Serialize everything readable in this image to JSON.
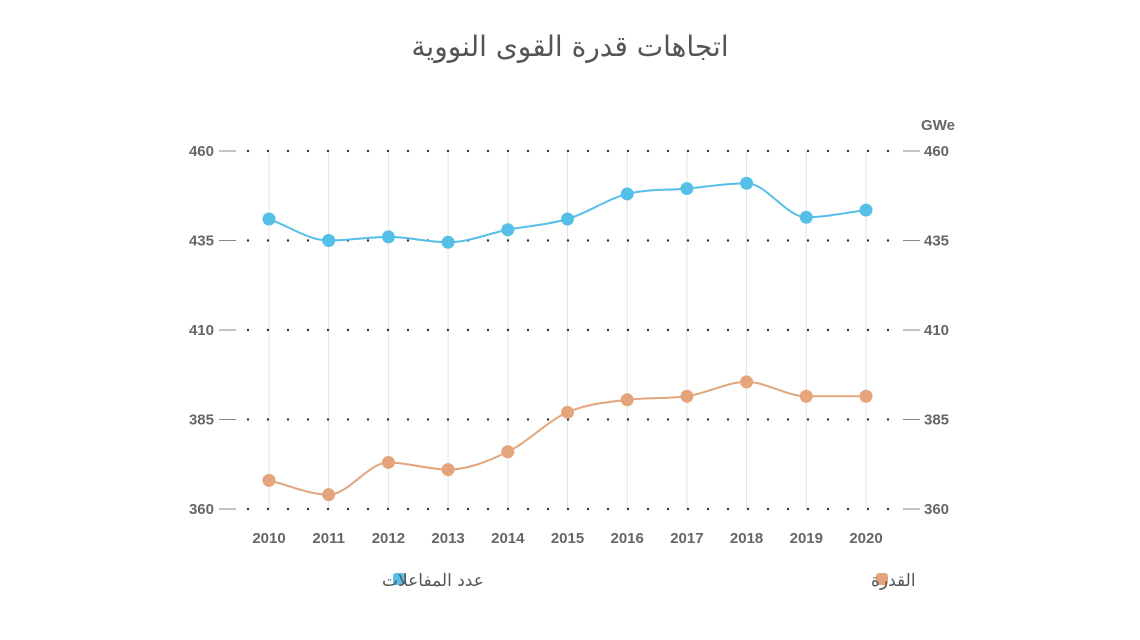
{
  "chart_data": {
    "type": "line",
    "title": "اتجاهات قدرة القوى النووية",
    "y2label": "GWe",
    "x": [
      "2010",
      "2011",
      "2012",
      "2013",
      "2014",
      "2015",
      "2016",
      "2017",
      "2018",
      "2019",
      "2020"
    ],
    "ylim": [
      360,
      460
    ],
    "yticks": [
      360,
      385,
      410,
      435,
      460
    ],
    "grid": true,
    "legend_position": "bottom",
    "series": [
      {
        "name": "عدد المفاعلات",
        "color": "#56bfe8",
        "values": [
          441,
          435,
          436,
          434.5,
          438,
          441,
          448,
          449.5,
          451,
          441.5,
          443.5
        ]
      },
      {
        "name": "القدرة",
        "color": "#e5a57c",
        "values": [
          368,
          364,
          373,
          371,
          376,
          387,
          390.5,
          391.5,
          395.5,
          391.5,
          391.5
        ]
      }
    ]
  }
}
